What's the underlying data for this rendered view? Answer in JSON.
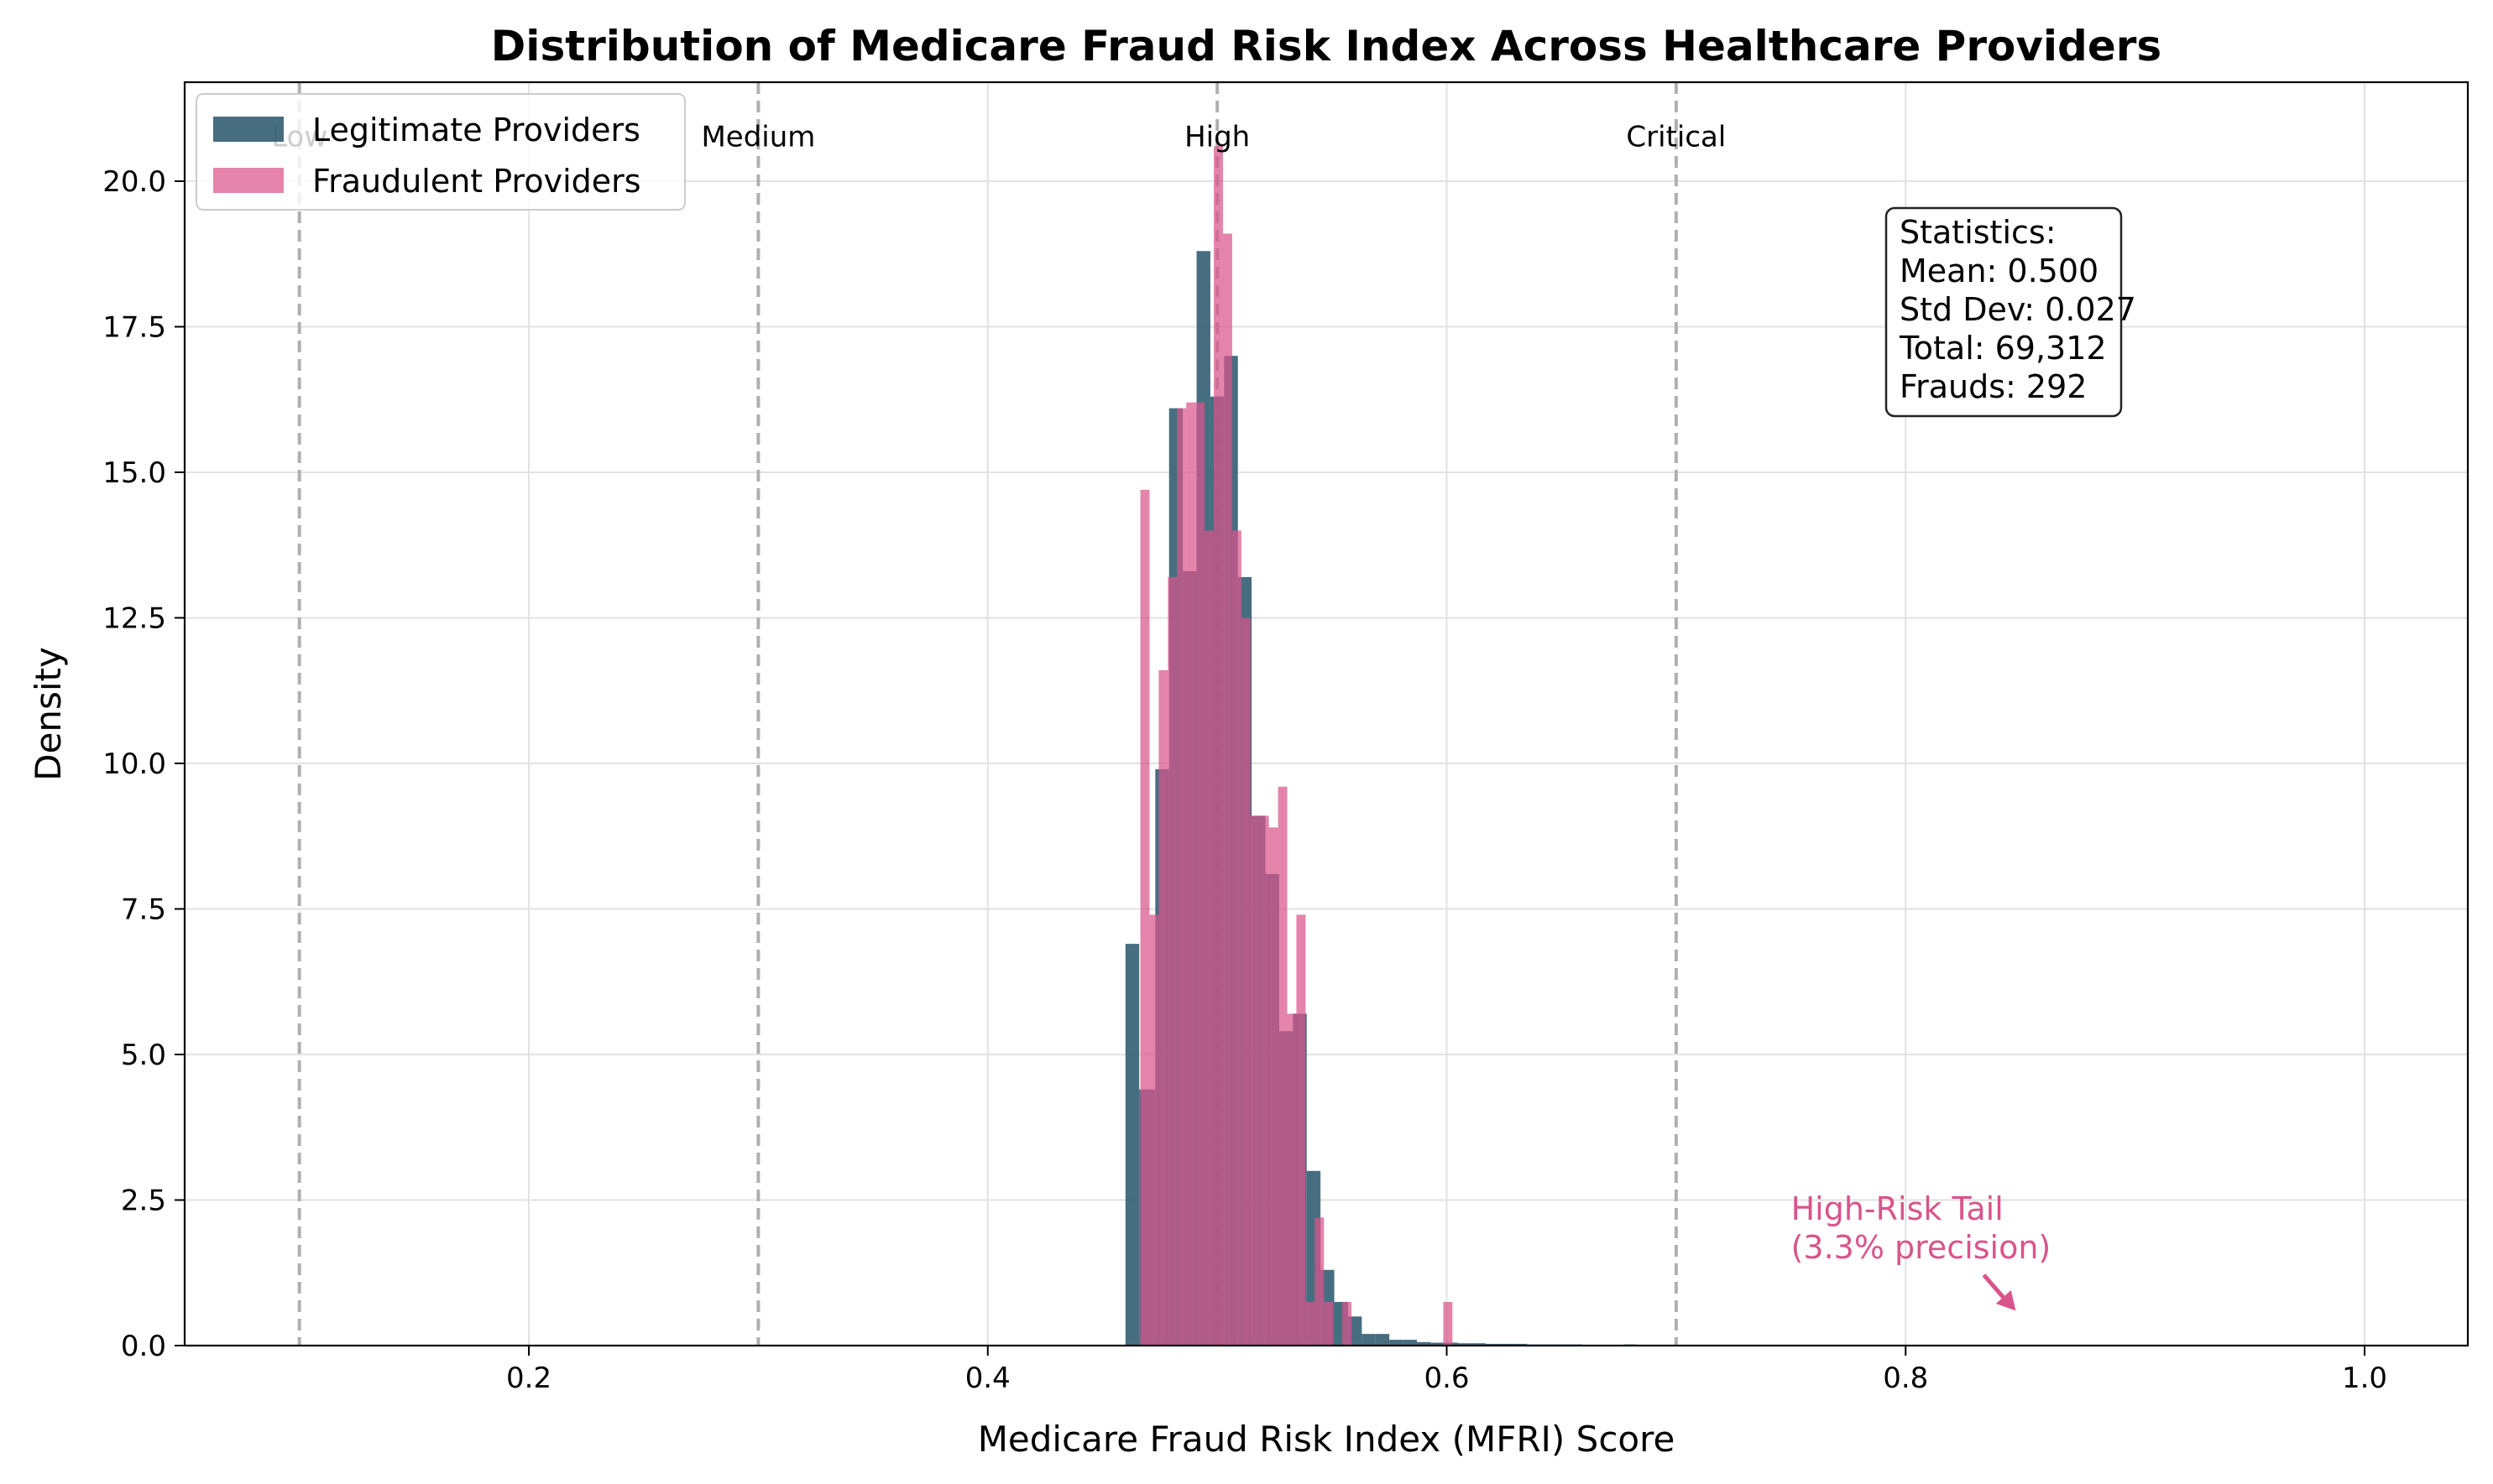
{
  "chart_data": {
    "type": "histogram",
    "title": "Distribution of Medicare Fraud Risk Index Across Healthcare Providers",
    "xlabel": "Medicare Fraud Risk Index (MFRI) Score",
    "ylabel": "Density",
    "xlim": [
      0.05,
      1.045
    ],
    "ylim": [
      0,
      21.7
    ],
    "x_ticks": [
      0.2,
      0.4,
      0.6,
      0.8,
      1.0
    ],
    "x_tick_labels": [
      "0.2",
      "0.4",
      "0.6",
      "0.8",
      "1.0"
    ],
    "y_ticks": [
      0.0,
      2.5,
      5.0,
      7.5,
      10.0,
      12.5,
      15.0,
      17.5,
      20.0
    ],
    "y_tick_labels": [
      "0.0",
      "2.5",
      "5.0",
      "7.5",
      "10.0",
      "12.5",
      "15.0",
      "17.5",
      "20.0"
    ],
    "grid": true,
    "legend_position": "top-left",
    "series": [
      {
        "name": "Legitimate Providers",
        "color": "#2e5a6e",
        "bins": [
          {
            "x0": 0.46,
            "x1": 0.466,
            "y": 6.9
          },
          {
            "x0": 0.466,
            "x1": 0.473,
            "y": 4.4
          },
          {
            "x0": 0.473,
            "x1": 0.479,
            "y": 9.9
          },
          {
            "x0": 0.479,
            "x1": 0.485,
            "y": 16.1
          },
          {
            "x0": 0.485,
            "x1": 0.491,
            "y": 13.3
          },
          {
            "x0": 0.491,
            "x1": 0.497,
            "y": 18.8
          },
          {
            "x0": 0.497,
            "x1": 0.503,
            "y": 16.3
          },
          {
            "x0": 0.503,
            "x1": 0.509,
            "y": 17.0
          },
          {
            "x0": 0.509,
            "x1": 0.515,
            "y": 13.2
          },
          {
            "x0": 0.515,
            "x1": 0.521,
            "y": 9.1
          },
          {
            "x0": 0.521,
            "x1": 0.527,
            "y": 8.1
          },
          {
            "x0": 0.527,
            "x1": 0.533,
            "y": 5.4
          },
          {
            "x0": 0.533,
            "x1": 0.539,
            "y": 5.7
          },
          {
            "x0": 0.539,
            "x1": 0.545,
            "y": 3.0
          },
          {
            "x0": 0.545,
            "x1": 0.551,
            "y": 1.3
          },
          {
            "x0": 0.551,
            "x1": 0.557,
            "y": 0.75
          },
          {
            "x0": 0.557,
            "x1": 0.563,
            "y": 0.5
          },
          {
            "x0": 0.563,
            "x1": 0.569,
            "y": 0.2
          },
          {
            "x0": 0.569,
            "x1": 0.575,
            "y": 0.2
          },
          {
            "x0": 0.575,
            "x1": 0.581,
            "y": 0.1
          },
          {
            "x0": 0.581,
            "x1": 0.587,
            "y": 0.1
          },
          {
            "x0": 0.587,
            "x1": 0.593,
            "y": 0.06
          },
          {
            "x0": 0.593,
            "x1": 0.599,
            "y": 0.05
          },
          {
            "x0": 0.599,
            "x1": 0.605,
            "y": 0.05
          },
          {
            "x0": 0.605,
            "x1": 0.611,
            "y": 0.04
          },
          {
            "x0": 0.611,
            "x1": 0.617,
            "y": 0.04
          },
          {
            "x0": 0.617,
            "x1": 0.623,
            "y": 0.03
          },
          {
            "x0": 0.623,
            "x1": 0.629,
            "y": 0.03
          },
          {
            "x0": 0.629,
            "x1": 0.635,
            "y": 0.03
          },
          {
            "x0": 0.635,
            "x1": 0.641,
            "y": 0.02
          },
          {
            "x0": 0.641,
            "x1": 0.647,
            "y": 0.02
          },
          {
            "x0": 0.647,
            "x1": 0.653,
            "y": 0.02
          },
          {
            "x0": 0.653,
            "x1": 0.659,
            "y": 0.02
          },
          {
            "x0": 0.659,
            "x1": 0.665,
            "y": 0.01
          },
          {
            "x0": 0.665,
            "x1": 0.671,
            "y": 0.01
          },
          {
            "x0": 0.671,
            "x1": 0.677,
            "y": 0.01
          },
          {
            "x0": 0.677,
            "x1": 0.683,
            "y": 0.02
          },
          {
            "x0": 0.683,
            "x1": 0.689,
            "y": 0.01
          }
        ]
      },
      {
        "name": "Fraudulent Providers",
        "color": "#d9548a",
        "bins": [
          {
            "x0": 0.4665,
            "x1": 0.4705,
            "y": 14.7
          },
          {
            "x0": 0.4705,
            "x1": 0.4745,
            "y": 7.4
          },
          {
            "x0": 0.4745,
            "x1": 0.4785,
            "y": 11.6
          },
          {
            "x0": 0.4785,
            "x1": 0.4825,
            "y": 13.2
          },
          {
            "x0": 0.4825,
            "x1": 0.4865,
            "y": 16.1
          },
          {
            "x0": 0.4865,
            "x1": 0.4905,
            "y": 16.2
          },
          {
            "x0": 0.4905,
            "x1": 0.4945,
            "y": 16.2
          },
          {
            "x0": 0.4945,
            "x1": 0.4985,
            "y": 14.0
          },
          {
            "x0": 0.4985,
            "x1": 0.5025,
            "y": 20.6
          },
          {
            "x0": 0.5025,
            "x1": 0.5065,
            "y": 19.1
          },
          {
            "x0": 0.5065,
            "x1": 0.5105,
            "y": 14.0
          },
          {
            "x0": 0.5105,
            "x1": 0.5145,
            "y": 12.5
          },
          {
            "x0": 0.5145,
            "x1": 0.5185,
            "y": 9.1
          },
          {
            "x0": 0.5185,
            "x1": 0.5225,
            "y": 9.1
          },
          {
            "x0": 0.5225,
            "x1": 0.5265,
            "y": 8.9
          },
          {
            "x0": 0.5265,
            "x1": 0.5305,
            "y": 9.6
          },
          {
            "x0": 0.5305,
            "x1": 0.5345,
            "y": 5.7
          },
          {
            "x0": 0.5345,
            "x1": 0.5385,
            "y": 7.4
          },
          {
            "x0": 0.5385,
            "x1": 0.5425,
            "y": 0.75
          },
          {
            "x0": 0.5425,
            "x1": 0.5465,
            "y": 2.2
          },
          {
            "x0": 0.5465,
            "x1": 0.5505,
            "y": 0.75
          },
          {
            "x0": 0.5545,
            "x1": 0.5585,
            "y": 0.75
          },
          {
            "x0": 0.5985,
            "x1": 0.6025,
            "y": 0.75
          }
        ]
      }
    ],
    "reference_lines": [
      {
        "x": 0.1,
        "label": "Low"
      },
      {
        "x": 0.3,
        "label": "Medium"
      },
      {
        "x": 0.5,
        "label": "High"
      },
      {
        "x": 0.7,
        "label": "Critical"
      }
    ],
    "stats_box": {
      "heading": "Statistics:",
      "mean": "Mean: 0.500",
      "std": "Std Dev: 0.027",
      "total": "Total: 69,312",
      "frauds": "Frauds: 292"
    },
    "annotation": {
      "line1": "High-Risk Tail",
      "line2": "(3.3% precision)",
      "text_x": 0.75,
      "text_y": 1.5,
      "arrow_x": 0.848,
      "arrow_y": 0.6,
      "color": "#d9548a"
    }
  }
}
